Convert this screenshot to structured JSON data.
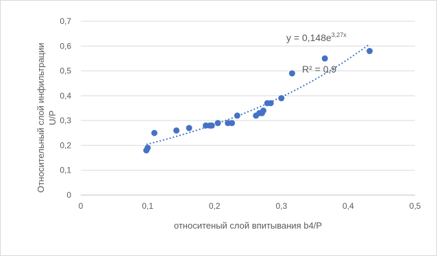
{
  "chart_data": {
    "type": "scatter",
    "title": "",
    "xlabel": "относитеный слой впитывания b4/P",
    "ylabel_line1": "Относительный слой инфильтрации",
    "ylabel_line2": "U/P",
    "xlim": [
      0,
      0.5
    ],
    "ylim": [
      0,
      0.7
    ],
    "x_ticks": [
      "0",
      "0,1",
      "0,2",
      "0,3",
      "0,4",
      "0,5"
    ],
    "y_ticks": [
      "0",
      "0,1",
      "0,2",
      "0,3",
      "0,4",
      "0,5",
      "0,6",
      "0,7"
    ],
    "grid": true,
    "legend": "none",
    "points": [
      {
        "x": 0.098,
        "y": 0.18
      },
      {
        "x": 0.1,
        "y": 0.19
      },
      {
        "x": 0.11,
        "y": 0.25
      },
      {
        "x": 0.143,
        "y": 0.26
      },
      {
        "x": 0.162,
        "y": 0.27
      },
      {
        "x": 0.187,
        "y": 0.28
      },
      {
        "x": 0.193,
        "y": 0.28
      },
      {
        "x": 0.196,
        "y": 0.28
      },
      {
        "x": 0.205,
        "y": 0.29
      },
      {
        "x": 0.22,
        "y": 0.29
      },
      {
        "x": 0.226,
        "y": 0.29
      },
      {
        "x": 0.234,
        "y": 0.32
      },
      {
        "x": 0.262,
        "y": 0.32
      },
      {
        "x": 0.267,
        "y": 0.33
      },
      {
        "x": 0.271,
        "y": 0.33
      },
      {
        "x": 0.273,
        "y": 0.34
      },
      {
        "x": 0.279,
        "y": 0.37
      },
      {
        "x": 0.284,
        "y": 0.37
      },
      {
        "x": 0.3,
        "y": 0.39
      },
      {
        "x": 0.316,
        "y": 0.49
      },
      {
        "x": 0.365,
        "y": 0.55
      },
      {
        "x": 0.432,
        "y": 0.58
      }
    ],
    "trendline": {
      "type": "exponential",
      "a": 0.148,
      "b": 3.27,
      "x_range": [
        0.098,
        0.432
      ],
      "equation_main": "y = 0,148e",
      "equation_exp": "3,27x",
      "r_squared": "R² = 0,9"
    },
    "colors": {
      "point": "#4472c4",
      "trend": "#4472c4",
      "grid": "#d9d9d9",
      "text": "#595959"
    }
  }
}
